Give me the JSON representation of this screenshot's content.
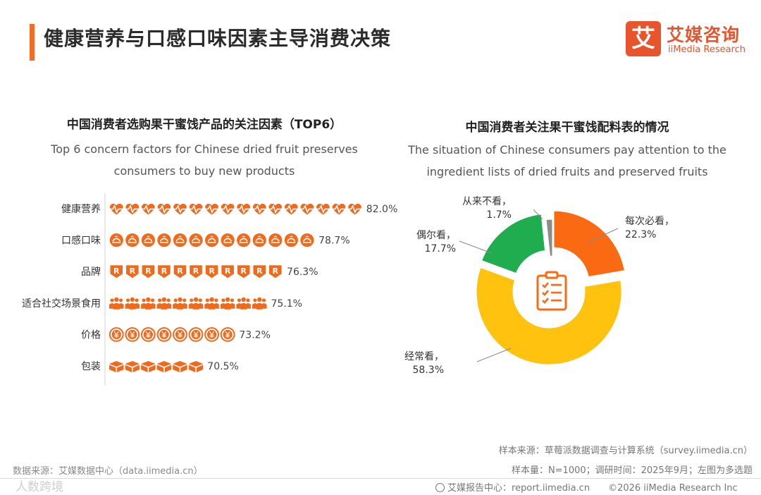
{
  "header": {
    "title": "健康营养与口感口味因素主导消费决策"
  },
  "logo": {
    "mark": "艾",
    "name_cn": "艾媒咨询",
    "name_en": "iiMedia Research"
  },
  "left_chart": {
    "title": "中国消费者选购果干蜜饯产品的关注因素（TOP6）",
    "subtitle": "Top 6 concern factors for Chinese dried fruit preserves consumers to buy new products"
  },
  "right_chart": {
    "title": "中国消费者关注果干蜜饯配料表的情况",
    "subtitle": "The situation of Chinese consumers pay attention to the ingredient lists of dried fruits and preserved fruits"
  },
  "chart_data": [
    {
      "type": "bar",
      "title": "中国消费者选购果干蜜饯产品的关注因素（TOP6）",
      "categories": [
        "健康营养",
        "口感口味",
        "品牌",
        "适合社交场景食用",
        "价格",
        "包装"
      ],
      "values": [
        82.0,
        78.7,
        76.3,
        75.1,
        73.2,
        70.5
      ],
      "value_labels": [
        "82.0%",
        "78.7%",
        "76.3%",
        "75.1%",
        "73.2%",
        "70.5%"
      ],
      "icons": [
        "heartbeat-icon",
        "dish-icon",
        "brand-shield-icon",
        "people-group-icon",
        "yuan-coin-icon",
        "package-box-icon"
      ],
      "color": "#f06a1e",
      "unit": "%"
    },
    {
      "type": "pie",
      "title": "中国消费者关注果干蜜饯配料表的情况",
      "labels": [
        "每次必看",
        "经常看",
        "偶尔看",
        "从来不看"
      ],
      "values": [
        22.3,
        58.3,
        17.7,
        1.7
      ],
      "value_labels": [
        "22.3%",
        "58.3%",
        "17.7%",
        "1.7%"
      ],
      "colors": [
        "#fa6a12",
        "#ffc20e",
        "#1fad4f",
        "#8c8c8c"
      ],
      "center_icon": "clipboard-checklist-icon"
    }
  ],
  "sources": {
    "left": "数据来源：艾媒数据中心（data.iimedia.cn）",
    "right_line1": "样本来源：草莓派数据调查与计算系统（survey.iimedia.cn）",
    "right_line2": "样本量：N=1000；调研时间：2025年9月；左图为多选题"
  },
  "watermark": "人数跨境",
  "footer": {
    "report": "艾媒报告中心：report.iimedia.cn",
    "copyright": "©2026  iiMedia Research Inc"
  }
}
